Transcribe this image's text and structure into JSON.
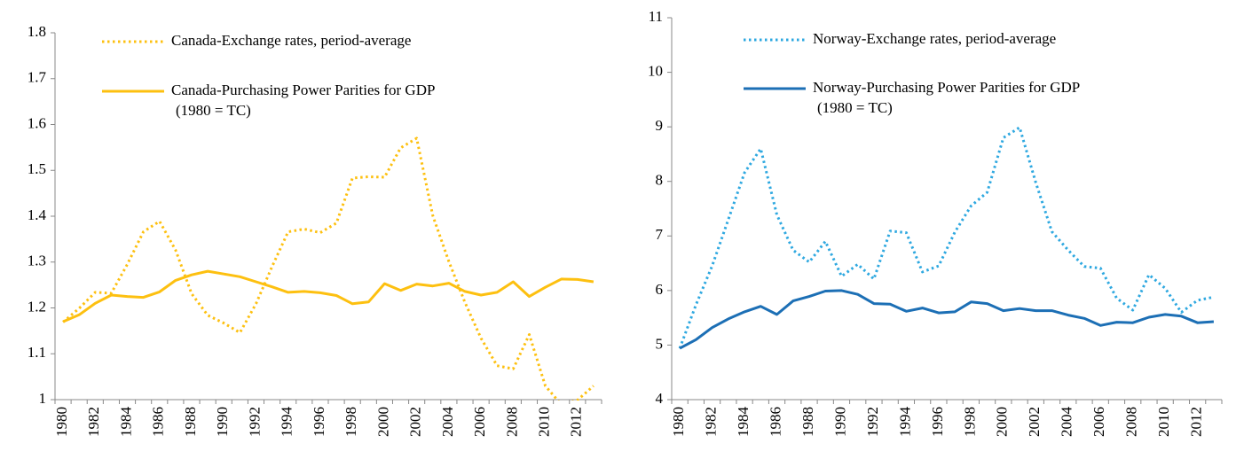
{
  "chart_data": [
    {
      "type": "line",
      "categories": [
        "1980",
        null,
        "1982",
        null,
        "1984",
        null,
        "1986",
        null,
        "1988",
        null,
        "1990",
        null,
        "1992",
        null,
        "1994",
        null,
        "1996",
        null,
        "1998",
        null,
        "2000",
        null,
        "2002",
        null,
        "2004",
        null,
        "2006",
        null,
        "2008",
        null,
        "2010",
        null,
        "2012",
        null
      ],
      "ylim": [
        1,
        1.8
      ],
      "yticks": [
        1,
        1.1,
        1.2,
        1.3,
        1.4,
        1.5,
        1.6,
        1.7,
        1.8
      ],
      "series": [
        {
          "name": "Canada-Exchange rates, period-average",
          "color": "#fdc010",
          "style": "dotted",
          "values": [
            1.169,
            1.199,
            1.234,
            1.232,
            1.295,
            1.366,
            1.389,
            1.326,
            1.231,
            1.184,
            1.167,
            1.146,
            1.209,
            1.29,
            1.366,
            1.372,
            1.364,
            1.385,
            1.483,
            1.486,
            1.485,
            1.549,
            1.57,
            1.401,
            1.301,
            1.212,
            1.134,
            1.074,
            1.067,
            1.142,
            1.03,
            0.989,
            0.999,
            1.03
          ]
        },
        {
          "name": "Canada-Purchasing Power Parities for GDP",
          "note": "(1980 = TC)",
          "color": "#fdc010",
          "style": "solid",
          "values": [
            1.17,
            1.185,
            1.21,
            1.228,
            1.225,
            1.223,
            1.235,
            1.26,
            1.272,
            1.28,
            1.274,
            1.268,
            1.257,
            1.246,
            1.234,
            1.236,
            1.233,
            1.227,
            1.209,
            1.213,
            1.253,
            1.238,
            1.252,
            1.248,
            1.254,
            1.236,
            1.228,
            1.234,
            1.257,
            1.225,
            1.245,
            1.263,
            1.262,
            1.257
          ]
        }
      ]
    },
    {
      "type": "line",
      "categories": [
        "1980",
        null,
        "1982",
        null,
        "1984",
        null,
        "1986",
        null,
        "1988",
        null,
        "1990",
        null,
        "1992",
        null,
        "1994",
        null,
        "1996",
        null,
        "1998",
        null,
        "2000",
        null,
        "2002",
        null,
        "2004",
        null,
        "2006",
        null,
        "2008",
        null,
        "2010",
        null,
        "2012",
        null
      ],
      "ylim": [
        4,
        11
      ],
      "yticks": [
        4,
        5,
        6,
        7,
        8,
        9,
        10,
        11
      ],
      "series": [
        {
          "name": "Norway-Exchange rates, period-average",
          "color": "#2ea8e0",
          "style": "dotted",
          "values": [
            4.94,
            5.74,
            6.45,
            7.3,
            8.16,
            8.6,
            7.39,
            6.74,
            6.52,
            6.9,
            6.26,
            6.48,
            6.21,
            7.09,
            7.06,
            6.34,
            6.45,
            7.07,
            7.55,
            7.8,
            8.8,
            8.99,
            7.98,
            7.08,
            6.74,
            6.44,
            6.41,
            5.86,
            5.64,
            6.29,
            6.04,
            5.6,
            5.82,
            5.88
          ]
        },
        {
          "name": "Norway-Purchasing Power Parities for GDP",
          "note": "(1980 = TC)",
          "color": "#1c6fb5",
          "style": "solid",
          "values": [
            4.94,
            5.1,
            5.32,
            5.48,
            5.61,
            5.71,
            5.56,
            5.81,
            5.89,
            5.99,
            6.0,
            5.93,
            5.76,
            5.75,
            5.62,
            5.68,
            5.59,
            5.61,
            5.79,
            5.76,
            5.63,
            5.67,
            5.63,
            5.63,
            5.55,
            5.49,
            5.36,
            5.42,
            5.41,
            5.51,
            5.56,
            5.53,
            5.41,
            5.43
          ]
        }
      ]
    }
  ]
}
